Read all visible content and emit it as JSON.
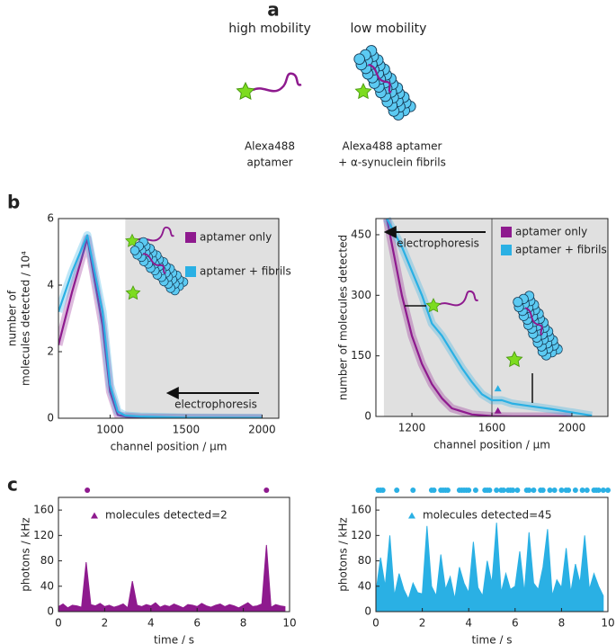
{
  "figure": {
    "panel_labels": [
      "a",
      "b",
      "c"
    ],
    "illustration": {
      "headings": [
        "high mobility",
        "low mobility"
      ],
      "captions": [
        [
          "Alexa488",
          "aptamer"
        ],
        [
          "Alexa488 aptamer",
          "+ α-synuclein fibrils"
        ]
      ]
    }
  },
  "chart_data": [
    {
      "type": "line",
      "xlabel": "channel position / µm",
      "ylabel": [
        "number of",
        "molecules detected / 10⁴"
      ],
      "xlim": [
        660,
        2110
      ],
      "xticks": [
        1000,
        1500,
        2000
      ],
      "ylim": [
        0,
        6
      ],
      "yticks": [
        0,
        2,
        4,
        6
      ],
      "shaded": [
        1100,
        2110
      ],
      "annotation": "electrophoresis",
      "series": [
        {
          "name": "aptamer only",
          "color": "#8e1a8e",
          "x": [
            660,
            750,
            850,
            950,
            1000,
            1050,
            1100,
            1200,
            1500,
            2000
          ],
          "values": [
            2.2,
            3.8,
            5.4,
            2.8,
            0.8,
            0.1,
            0.05,
            0.02,
            0.01,
            0
          ]
        },
        {
          "name": "aptamer + fibrils",
          "color": "#2ab0e4",
          "x": [
            660,
            750,
            850,
            950,
            1000,
            1050,
            1100,
            1200,
            1500,
            2000
          ],
          "values": [
            3.2,
            4.4,
            5.5,
            3.2,
            1.0,
            0.2,
            0.08,
            0.05,
            0.02,
            0.01
          ]
        }
      ]
    },
    {
      "type": "line",
      "xlabel": "channel position / µm",
      "ylabel": [
        "number of molecules detected"
      ],
      "xlim": [
        1020,
        2180
      ],
      "xticks": [
        1200,
        1600,
        2000
      ],
      "ylim": [
        0,
        490
      ],
      "yticks": [
        0,
        150,
        300,
        450
      ],
      "shaded": [
        1060,
        2180
      ],
      "vline": 1600,
      "annotation": "electrophoresis",
      "series": [
        {
          "name": "aptamer only",
          "color": "#8e1a8e",
          "x": [
            1075,
            1150,
            1200,
            1250,
            1300,
            1350,
            1400,
            1500,
            1600,
            1700,
            2000
          ],
          "values": [
            490,
            300,
            200,
            130,
            80,
            45,
            20,
            5,
            1,
            0,
            0
          ],
          "marker": {
            "x": 1630,
            "y": 15
          }
        },
        {
          "name": "aptamer + fibrils",
          "color": "#2ab0e4",
          "x": [
            1075,
            1150,
            1200,
            1250,
            1300,
            1350,
            1400,
            1450,
            1500,
            1550,
            1600,
            1650,
            1700,
            1800,
            1900,
            2000,
            2100
          ],
          "values": [
            490,
            420,
            360,
            300,
            230,
            200,
            160,
            120,
            85,
            55,
            40,
            40,
            32,
            25,
            18,
            10,
            2
          ],
          "marker": {
            "x": 1630,
            "y": 70
          }
        }
      ]
    },
    {
      "type": "line",
      "fill": true,
      "xlabel": "time / s",
      "ylabel": [
        "photons / kHz"
      ],
      "xlim": [
        0,
        10
      ],
      "xticks": [
        0,
        2,
        4,
        6,
        8,
        10
      ],
      "ylim": [
        0,
        180
      ],
      "yticks": [
        0,
        40,
        80,
        120,
        160
      ],
      "annotation": "molecules detected=2",
      "events": [
        1.25,
        9.0
      ],
      "series": [
        {
          "color": "#8e1a8e",
          "x": [
            0,
            0.2,
            0.4,
            0.6,
            0.8,
            1.0,
            1.2,
            1.4,
            1.6,
            1.8,
            2.0,
            2.2,
            2.4,
            2.6,
            2.8,
            3.0,
            3.2,
            3.4,
            3.6,
            3.8,
            4.0,
            4.2,
            4.4,
            4.6,
            4.8,
            5.0,
            5.2,
            5.4,
            5.6,
            5.8,
            6.0,
            6.2,
            6.4,
            6.6,
            6.8,
            7.0,
            7.2,
            7.4,
            7.6,
            7.8,
            8.0,
            8.2,
            8.4,
            8.6,
            8.8,
            9.0,
            9.2,
            9.4,
            9.6,
            9.8
          ],
          "values": [
            8,
            12,
            6,
            10,
            9,
            7,
            78,
            11,
            9,
            13,
            8,
            10,
            7,
            9,
            12,
            6,
            48,
            10,
            8,
            11,
            9,
            14,
            7,
            10,
            8,
            12,
            9,
            6,
            11,
            10,
            8,
            13,
            9,
            7,
            10,
            12,
            8,
            11,
            9,
            6,
            10,
            14,
            8,
            9,
            12,
            105,
            7,
            11,
            9,
            8
          ]
        }
      ]
    },
    {
      "type": "line",
      "fill": true,
      "xlabel": "time / s",
      "ylabel": [
        "photons / kHz"
      ],
      "xlim": [
        0,
        10
      ],
      "xticks": [
        0,
        2,
        4,
        6,
        8,
        10
      ],
      "ylim": [
        0,
        180
      ],
      "yticks": [
        0,
        40,
        80,
        120,
        160
      ],
      "annotation": "molecules detected=45",
      "events": [
        0.1,
        0.2,
        0.3,
        0.9,
        1.6,
        2.4,
        2.5,
        2.8,
        2.9,
        3.0,
        3.1,
        3.6,
        3.7,
        3.8,
        3.9,
        4.0,
        4.3,
        4.7,
        4.8,
        4.9,
        5.2,
        5.4,
        5.5,
        5.7,
        5.8,
        5.9,
        6.1,
        6.5,
        6.6,
        6.8,
        7.1,
        7.2,
        7.5,
        7.7,
        8.0,
        8.2,
        8.3,
        8.6,
        8.9,
        9.1,
        9.4,
        9.5,
        9.6,
        9.8,
        10.0
      ],
      "series": [
        {
          "color": "#2ab0e4",
          "x": [
            0,
            0.2,
            0.4,
            0.6,
            0.8,
            1.0,
            1.2,
            1.4,
            1.6,
            1.8,
            2.0,
            2.2,
            2.4,
            2.6,
            2.8,
            3.0,
            3.2,
            3.4,
            3.6,
            3.8,
            4.0,
            4.2,
            4.4,
            4.6,
            4.8,
            5.0,
            5.2,
            5.4,
            5.6,
            5.8,
            6.0,
            6.2,
            6.4,
            6.6,
            6.8,
            7.0,
            7.2,
            7.4,
            7.6,
            7.8,
            8.0,
            8.2,
            8.4,
            8.6,
            8.8,
            9.0,
            9.2,
            9.4,
            9.6,
            9.8
          ],
          "values": [
            30,
            85,
            40,
            120,
            25,
            60,
            35,
            20,
            45,
            30,
            28,
            135,
            40,
            25,
            90,
            35,
            55,
            20,
            70,
            45,
            30,
            110,
            38,
            25,
            80,
            45,
            140,
            30,
            60,
            35,
            40,
            95,
            30,
            125,
            45,
            35,
            70,
            130,
            25,
            50,
            38,
            100,
            30,
            75,
            45,
            120,
            35,
            60,
            40,
            25
          ]
        }
      ]
    }
  ]
}
